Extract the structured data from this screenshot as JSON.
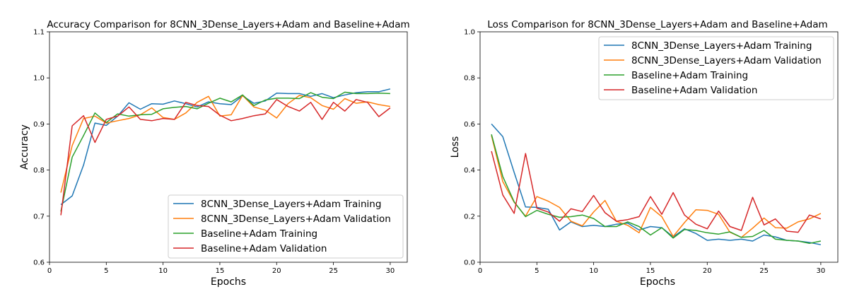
{
  "chart_data": [
    {
      "type": "line",
      "title": "Accuracy Comparison for 8CNN_3Dense_Layers+Adam and Baseline+Adam",
      "xlabel": "Epochs",
      "ylabel": "Accuracy",
      "xlim": [
        0,
        31.5
      ],
      "ylim": [
        0.6,
        1.1
      ],
      "xticks": [
        0,
        5,
        10,
        15,
        20,
        25,
        30
      ],
      "yticks": [
        0.6,
        0.7,
        0.8,
        0.9,
        1.0,
        1.1
      ],
      "xtick_labels": [
        "0",
        "5",
        "10",
        "15",
        "20",
        "25",
        "30"
      ],
      "ytick_labels": [
        "0.6",
        "0.7",
        "0.8",
        "0.9",
        "1.0",
        "1.1"
      ],
      "grid": false,
      "legend_position": "lower-right",
      "x": [
        1,
        2,
        3,
        4,
        5,
        6,
        7,
        8,
        9,
        10,
        11,
        12,
        13,
        14,
        15,
        16,
        17,
        18,
        19,
        20,
        21,
        22,
        23,
        24,
        25,
        26,
        27,
        28,
        29,
        30
      ],
      "series": [
        {
          "name": "8CNN_3Dense_Layers+Adam Training",
          "color": "#1f77b4",
          "values": [
            0.725,
            0.744,
            0.811,
            0.902,
            0.897,
            0.917,
            0.946,
            0.932,
            0.944,
            0.943,
            0.95,
            0.944,
            0.937,
            0.948,
            0.944,
            0.942,
            0.961,
            0.945,
            0.95,
            0.967,
            0.966,
            0.966,
            0.96,
            0.966,
            0.957,
            0.963,
            0.968,
            0.97,
            0.97,
            0.976
          ]
        },
        {
          "name": "8CNN_3Dense_Layers+Adam Validation",
          "color": "#ff7f0e",
          "values": [
            0.751,
            0.853,
            0.912,
            0.917,
            0.902,
            0.907,
            0.912,
            0.92,
            0.935,
            0.914,
            0.91,
            0.924,
            0.947,
            0.96,
            0.917,
            0.92,
            0.962,
            0.937,
            0.93,
            0.913,
            0.944,
            0.962,
            0.957,
            0.94,
            0.932,
            0.955,
            0.945,
            0.948,
            0.942,
            0.938
          ]
        },
        {
          "name": "Baseline+Adam Training",
          "color": "#2ca02c",
          "values": [
            0.71,
            0.828,
            0.875,
            0.924,
            0.903,
            0.922,
            0.917,
            0.92,
            0.921,
            0.933,
            0.936,
            0.938,
            0.933,
            0.945,
            0.956,
            0.948,
            0.963,
            0.94,
            0.952,
            0.956,
            0.956,
            0.955,
            0.968,
            0.958,
            0.955,
            0.969,
            0.966,
            0.966,
            0.967,
            0.966
          ]
        },
        {
          "name": "Baseline+Adam Validation",
          "color": "#d62728",
          "values": [
            0.702,
            0.896,
            0.918,
            0.86,
            0.91,
            0.917,
            0.937,
            0.91,
            0.907,
            0.912,
            0.91,
            0.947,
            0.94,
            0.938,
            0.919,
            0.907,
            0.912,
            0.918,
            0.922,
            0.953,
            0.938,
            0.928,
            0.947,
            0.91,
            0.947,
            0.928,
            0.953,
            0.947,
            0.916,
            0.935
          ]
        }
      ]
    },
    {
      "type": "line",
      "title": "Loss Comparison for 8CNN_3Dense_Layers+Adam and Baseline+Adam",
      "xlabel": "Epochs",
      "ylabel": "Loss",
      "xlim": [
        0,
        31.5
      ],
      "ylim": [
        0.0,
        1.0
      ],
      "xticks": [
        0,
        5,
        10,
        15,
        20,
        25,
        30
      ],
      "yticks": [
        0.0,
        0.2,
        0.4,
        0.6,
        0.8,
        1.0
      ],
      "xtick_labels": [
        "0",
        "5",
        "10",
        "15",
        "20",
        "25",
        "30"
      ],
      "ytick_labels": [
        "0.0",
        "0.2",
        "0.4",
        "0.6",
        "0.8",
        "1.0"
      ],
      "grid": false,
      "legend_position": "upper-right",
      "x": [
        1,
        2,
        3,
        4,
        5,
        6,
        7,
        8,
        9,
        10,
        11,
        12,
        13,
        14,
        15,
        16,
        17,
        18,
        19,
        20,
        21,
        22,
        23,
        24,
        25,
        26,
        27,
        28,
        29,
        30
      ],
      "series": [
        {
          "name": "8CNN_3Dense_Layers+Adam Training",
          "color": "#1f77b4",
          "values": [
            0.6,
            0.545,
            0.39,
            0.24,
            0.238,
            0.23,
            0.14,
            0.175,
            0.155,
            0.16,
            0.155,
            0.165,
            0.17,
            0.14,
            0.155,
            0.15,
            0.11,
            0.145,
            0.125,
            0.095,
            0.1,
            0.095,
            0.1,
            0.092,
            0.118,
            0.11,
            0.095,
            0.092,
            0.086,
            0.076
          ]
        },
        {
          "name": "8CNN_3Dense_Layers+Adam Validation",
          "color": "#ff7f0e",
          "values": [
            0.55,
            0.35,
            0.26,
            0.2,
            0.285,
            0.265,
            0.238,
            0.178,
            0.158,
            0.218,
            0.268,
            0.178,
            0.16,
            0.128,
            0.238,
            0.198,
            0.112,
            0.172,
            0.228,
            0.225,
            0.208,
            0.13,
            0.108,
            0.148,
            0.192,
            0.15,
            0.148,
            0.175,
            0.188,
            0.212
          ]
        },
        {
          "name": "Baseline+Adam Training",
          "color": "#2ca02c",
          "values": [
            0.555,
            0.372,
            0.262,
            0.198,
            0.225,
            0.208,
            0.195,
            0.198,
            0.205,
            0.19,
            0.155,
            0.155,
            0.175,
            0.155,
            0.118,
            0.15,
            0.105,
            0.142,
            0.138,
            0.128,
            0.122,
            0.132,
            0.108,
            0.112,
            0.138,
            0.1,
            0.095,
            0.092,
            0.082,
            0.092
          ]
        },
        {
          "name": "Baseline+Adam Validation",
          "color": "#d62728",
          "values": [
            0.482,
            0.292,
            0.212,
            0.472,
            0.235,
            0.218,
            0.178,
            0.232,
            0.22,
            0.29,
            0.215,
            0.178,
            0.185,
            0.198,
            0.285,
            0.208,
            0.302,
            0.205,
            0.165,
            0.145,
            0.222,
            0.155,
            0.138,
            0.282,
            0.162,
            0.188,
            0.135,
            0.13,
            0.205,
            0.188
          ]
        }
      ]
    }
  ]
}
